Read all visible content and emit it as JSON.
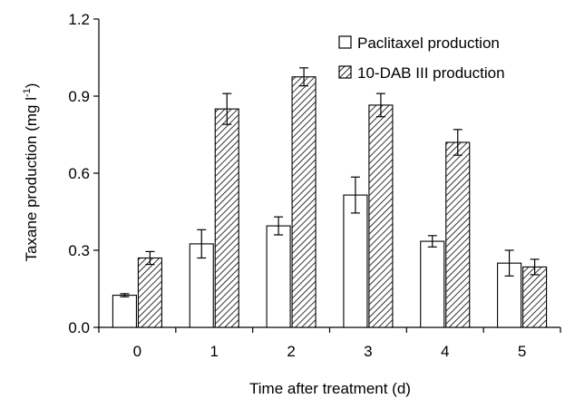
{
  "chart_data": {
    "type": "bar",
    "title": "",
    "xlabel": "Time after treatment (d)",
    "ylabel": "Taxane production (mg l",
    "ylabel_superscript": "-1",
    "ylabel_close": ")",
    "ylim": [
      0,
      1.2
    ],
    "yticks": [
      "0.0",
      "0.3",
      "0.6",
      "0.9",
      "1.2"
    ],
    "ytick_values": [
      0,
      0.3,
      0.6,
      0.9,
      1.2
    ],
    "categories": [
      "0",
      "1",
      "2",
      "3",
      "4",
      "5"
    ],
    "grid": false,
    "legend_position": "top-right",
    "series": [
      {
        "name": "Paclitaxel production",
        "fill": "white",
        "values": [
          0.125,
          0.325,
          0.395,
          0.515,
          0.335,
          0.25
        ],
        "errors": [
          0.006,
          0.055,
          0.035,
          0.07,
          0.022,
          0.05
        ]
      },
      {
        "name": "10-DAB III production",
        "fill": "hatched",
        "values": [
          0.27,
          0.85,
          0.975,
          0.865,
          0.72,
          0.235
        ],
        "errors": [
          0.025,
          0.06,
          0.035,
          0.045,
          0.05,
          0.03
        ]
      }
    ]
  }
}
